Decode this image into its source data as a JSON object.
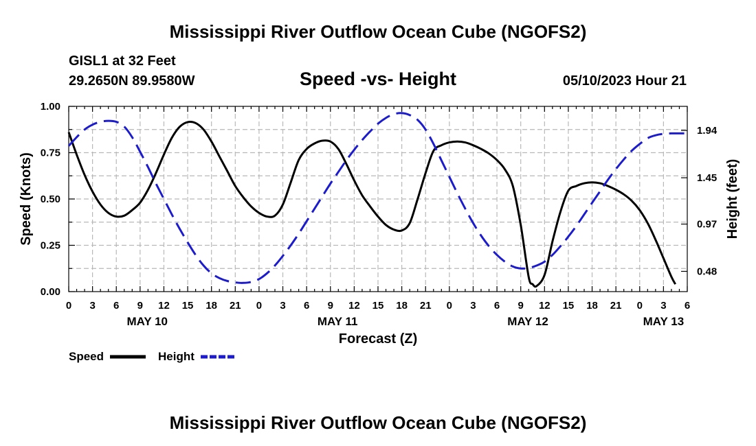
{
  "colors": {
    "speed": "#000000",
    "height": "#1c1ccc",
    "grid": "#b8b8b8"
  },
  "header": {
    "title": "Mississippi River Outflow Ocean Cube (NGOFS2)",
    "station": "GISL1 at 32 Feet",
    "coords": "29.2650N  89.9580W",
    "subtitle": "Speed -vs- Height",
    "datetime": "05/10/2023 Hour 21"
  },
  "footer_title": "Mississippi River Outflow Ocean Cube (NGOFS2)",
  "chart_data": {
    "type": "line",
    "title": "Speed -vs- Height",
    "xlabel": "Forecast (Z)",
    "ylabel_left": "Speed (Knots)",
    "ylabel_right": "Height (feet)",
    "x_range_hours": [
      0,
      78
    ],
    "x_ticks": [
      "0",
      "3",
      "6",
      "9",
      "12",
      "15",
      "18",
      "21",
      "0",
      "3",
      "6",
      "9",
      "12",
      "15",
      "18",
      "21",
      "0",
      "3",
      "6",
      "9",
      "12",
      "15",
      "18",
      "21",
      "0",
      "3",
      "6"
    ],
    "dates": [
      {
        "label": "MAY 10",
        "hour": 9.9
      },
      {
        "label": "MAY 11",
        "hour": 33.9
      },
      {
        "label": "MAY 12",
        "hour": 57.9
      },
      {
        "label": "MAY 13",
        "hour": 75.0
      }
    ],
    "ylim_left": [
      0,
      1
    ],
    "yticks_left": [
      "0.00",
      "0.25",
      "0.50",
      "0.75",
      "1.00"
    ],
    "ylim_right": [
      0.27,
      2.19
    ],
    "yticks_right": [
      "0.48",
      "0.97",
      "1.45",
      "1.94"
    ],
    "grid": true,
    "legend": [
      {
        "name": "Speed",
        "style": "solid"
      },
      {
        "name": "Height",
        "style": "dashed"
      }
    ],
    "series": [
      {
        "name": "Speed",
        "axis": "left",
        "style": "solid",
        "points": [
          [
            0,
            0.86
          ],
          [
            1,
            0.74
          ],
          [
            2,
            0.63
          ],
          [
            3,
            0.54
          ],
          [
            4,
            0.47
          ],
          [
            5,
            0.425
          ],
          [
            6,
            0.405
          ],
          [
            7,
            0.41
          ],
          [
            8,
            0.44
          ],
          [
            9,
            0.48
          ],
          [
            10,
            0.55
          ],
          [
            11,
            0.64
          ],
          [
            12,
            0.74
          ],
          [
            13,
            0.83
          ],
          [
            14,
            0.89
          ],
          [
            15,
            0.915
          ],
          [
            16,
            0.91
          ],
          [
            17,
            0.875
          ],
          [
            18,
            0.81
          ],
          [
            19,
            0.73
          ],
          [
            20,
            0.65
          ],
          [
            21,
            0.57
          ],
          [
            22,
            0.51
          ],
          [
            23,
            0.46
          ],
          [
            24,
            0.425
          ],
          [
            25,
            0.405
          ],
          [
            26,
            0.41
          ],
          [
            27,
            0.47
          ],
          [
            28,
            0.59
          ],
          [
            29,
            0.71
          ],
          [
            30,
            0.77
          ],
          [
            31,
            0.8
          ],
          [
            32,
            0.815
          ],
          [
            33,
            0.81
          ],
          [
            34,
            0.77
          ],
          [
            35,
            0.69
          ],
          [
            36,
            0.6
          ],
          [
            37,
            0.52
          ],
          [
            38,
            0.46
          ],
          [
            39,
            0.405
          ],
          [
            40,
            0.36
          ],
          [
            41,
            0.335
          ],
          [
            42,
            0.33
          ],
          [
            43,
            0.37
          ],
          [
            44,
            0.5
          ],
          [
            45,
            0.64
          ],
          [
            46,
            0.76
          ],
          [
            47,
            0.79
          ],
          [
            48,
            0.805
          ],
          [
            49,
            0.81
          ],
          [
            50,
            0.805
          ],
          [
            51,
            0.79
          ],
          [
            52,
            0.77
          ],
          [
            53,
            0.745
          ],
          [
            54,
            0.71
          ],
          [
            55,
            0.66
          ],
          [
            56,
            0.57
          ],
          [
            57,
            0.36
          ],
          [
            58,
            0.08
          ],
          [
            58.5,
            0.04
          ],
          [
            59,
            0.03
          ],
          [
            60,
            0.09
          ],
          [
            61,
            0.27
          ],
          [
            62,
            0.43
          ],
          [
            63,
            0.545
          ],
          [
            64,
            0.57
          ],
          [
            65,
            0.585
          ],
          [
            66,
            0.59
          ],
          [
            67,
            0.585
          ],
          [
            68,
            0.57
          ],
          [
            69,
            0.55
          ],
          [
            70,
            0.525
          ],
          [
            71,
            0.49
          ],
          [
            72,
            0.44
          ],
          [
            73,
            0.37
          ],
          [
            74,
            0.28
          ],
          [
            75,
            0.18
          ],
          [
            76,
            0.08
          ],
          [
            76.5,
            0.04
          ]
        ]
      },
      {
        "name": "Height",
        "axis": "right",
        "style": "dashed",
        "points": [
          [
            0,
            1.78
          ],
          [
            1,
            1.87
          ],
          [
            2,
            1.95
          ],
          [
            3,
            2.0
          ],
          [
            4,
            2.03
          ],
          [
            5,
            2.04
          ],
          [
            6,
            2.03
          ],
          [
            7,
            1.98
          ],
          [
            8,
            1.87
          ],
          [
            9,
            1.72
          ],
          [
            10,
            1.56
          ],
          [
            11,
            1.39
          ],
          [
            12,
            1.23
          ],
          [
            13,
            1.07
          ],
          [
            14,
            0.92
          ],
          [
            15,
            0.78
          ],
          [
            16,
            0.65
          ],
          [
            17,
            0.54
          ],
          [
            18,
            0.46
          ],
          [
            19,
            0.41
          ],
          [
            20,
            0.38
          ],
          [
            21,
            0.365
          ],
          [
            22,
            0.36
          ],
          [
            23,
            0.37
          ],
          [
            24,
            0.4
          ],
          [
            25,
            0.46
          ],
          [
            26,
            0.54
          ],
          [
            27,
            0.64
          ],
          [
            28,
            0.75
          ],
          [
            29,
            0.87
          ],
          [
            30,
            1.0
          ],
          [
            31,
            1.13
          ],
          [
            32,
            1.26
          ],
          [
            33,
            1.39
          ],
          [
            34,
            1.51
          ],
          [
            35,
            1.63
          ],
          [
            36,
            1.74
          ],
          [
            37,
            1.84
          ],
          [
            38,
            1.93
          ],
          [
            39,
            2.01
          ],
          [
            40,
            2.07
          ],
          [
            41,
            2.11
          ],
          [
            42,
            2.12
          ],
          [
            43,
            2.1
          ],
          [
            44,
            2.05
          ],
          [
            45,
            1.95
          ],
          [
            46,
            1.8
          ],
          [
            47,
            1.63
          ],
          [
            48,
            1.46
          ],
          [
            49,
            1.29
          ],
          [
            50,
            1.13
          ],
          [
            51,
            0.98
          ],
          [
            52,
            0.85
          ],
          [
            53,
            0.74
          ],
          [
            54,
            0.65
          ],
          [
            55,
            0.58
          ],
          [
            56,
            0.53
          ],
          [
            57,
            0.51
          ],
          [
            58,
            0.515
          ],
          [
            59,
            0.54
          ],
          [
            60,
            0.58
          ],
          [
            61,
            0.65
          ],
          [
            62,
            0.74
          ],
          [
            63,
            0.84
          ],
          [
            64,
            0.95
          ],
          [
            65,
            1.07
          ],
          [
            66,
            1.19
          ],
          [
            67,
            1.31
          ],
          [
            68,
            1.43
          ],
          [
            69,
            1.54
          ],
          [
            70,
            1.64
          ],
          [
            71,
            1.73
          ],
          [
            72,
            1.8
          ],
          [
            73,
            1.86
          ],
          [
            74,
            1.89
          ],
          [
            75,
            1.905
          ],
          [
            76,
            1.91
          ],
          [
            77,
            1.91
          ],
          [
            78,
            1.91
          ]
        ]
      }
    ]
  }
}
